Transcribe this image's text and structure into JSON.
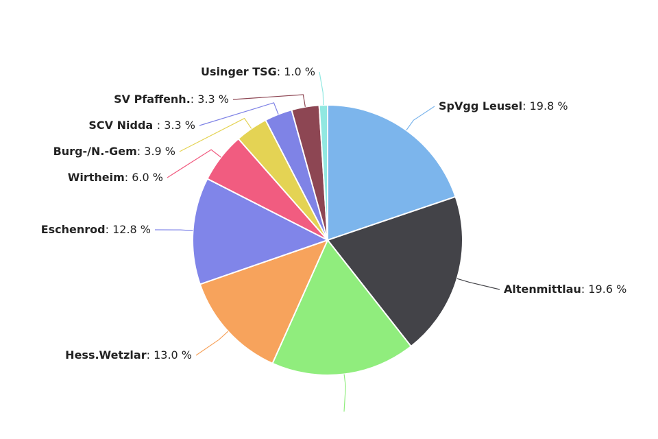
{
  "chart_data": {
    "type": "pie",
    "categories": [
      "SpVgg Leusel",
      "Altenmittlau",
      null,
      "Hess.Wetzlar",
      "Eschenrod",
      "Wirtheim",
      "Burg-/N.-Gem",
      "SCV Nidda ",
      "SV Pfaffenh.",
      "Usinger TSG"
    ],
    "values": [
      19.8,
      19.6,
      17.3,
      13.0,
      12.8,
      6.0,
      3.9,
      3.3,
      3.3,
      1.0
    ],
    "value_labels": [
      ": 19.8 %",
      ": 19.6 %",
      null,
      ": 13.0 %",
      ": 12.8 %",
      ": 6.0 %",
      ": 3.9 %",
      ": 3.3 %",
      ": 3.3 %",
      ": 1.0 %"
    ],
    "colors": [
      "#7cb5ec",
      "#434348",
      "#90ed7d",
      "#f7a35c",
      "#8085e9",
      "#f15c80",
      "#e4d354",
      "#7f83e6",
      "#8d4653",
      "#91e8e1"
    ]
  }
}
